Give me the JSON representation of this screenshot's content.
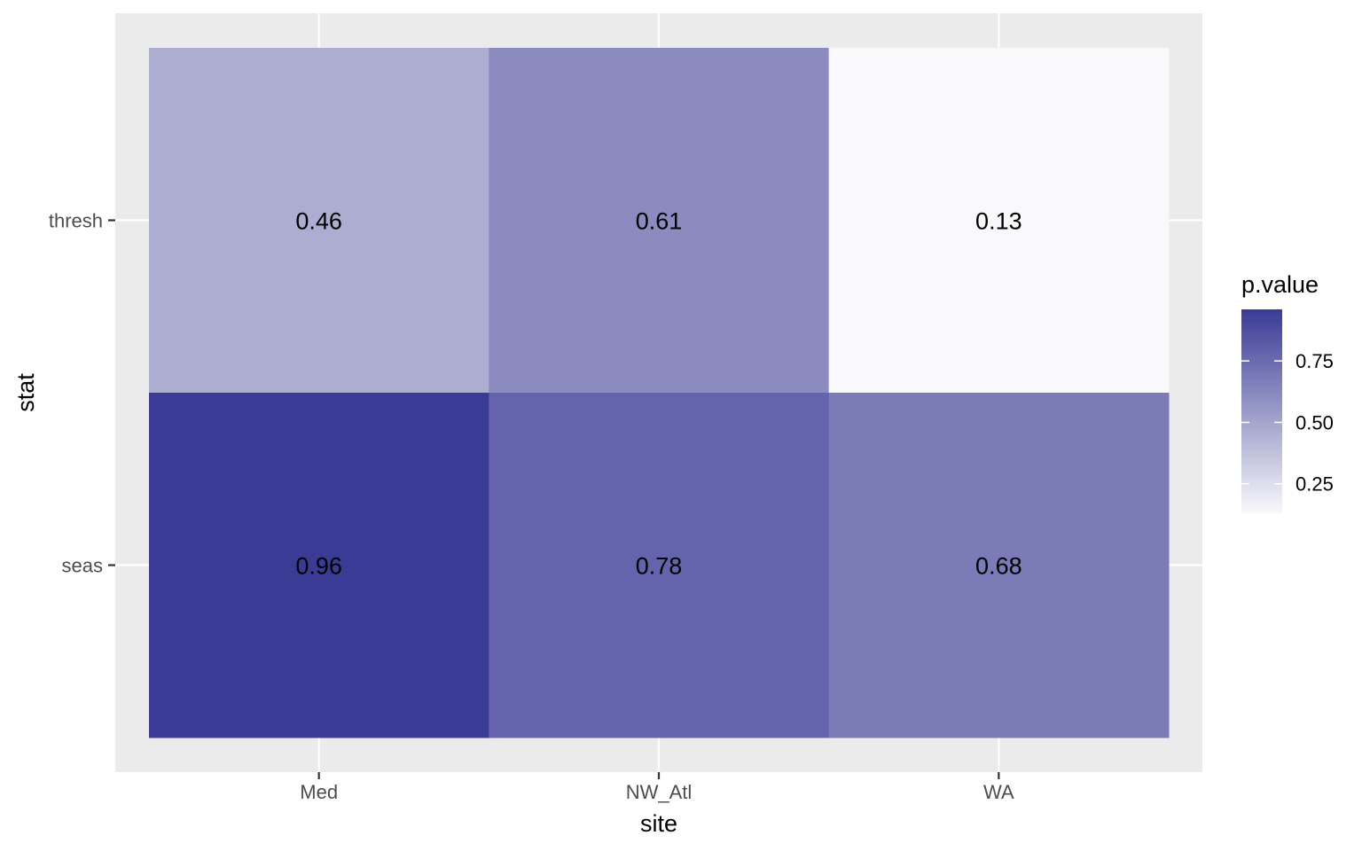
{
  "chart_data": {
    "type": "heatmap",
    "title": "",
    "xlabel": "site",
    "ylabel": "stat",
    "x_categories": [
      "Med",
      "NW_Atl",
      "WA"
    ],
    "y_categories": [
      "seas",
      "thresh"
    ],
    "cells": [
      {
        "x": "Med",
        "y": "thresh",
        "value": 0.46,
        "label": "0.46"
      },
      {
        "x": "NW_Atl",
        "y": "thresh",
        "value": 0.61,
        "label": "0.61"
      },
      {
        "x": "WA",
        "y": "thresh",
        "value": 0.13,
        "label": "0.13"
      },
      {
        "x": "Med",
        "y": "seas",
        "value": 0.96,
        "label": "0.96"
      },
      {
        "x": "NW_Atl",
        "y": "seas",
        "value": 0.78,
        "label": "0.78"
      },
      {
        "x": "WA",
        "y": "seas",
        "value": 0.68,
        "label": "0.68"
      }
    ],
    "legend": {
      "title": "p.value",
      "placement": "right",
      "range": [
        0.13,
        0.96
      ],
      "ticks": [
        0.25,
        0.5,
        0.75
      ],
      "tick_labels": [
        "0.25",
        "0.50",
        "0.75"
      ],
      "low_color": "#f9f9fb",
      "high_color": "#3a3b95"
    },
    "grid": true,
    "panel_background": "#ebebeb",
    "grid_color": "#ffffff"
  }
}
